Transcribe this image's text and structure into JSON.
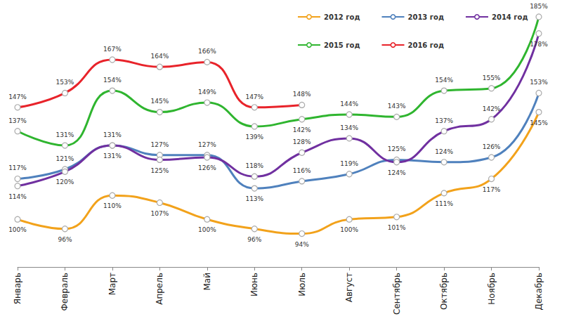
{
  "chart_data": {
    "type": "line",
    "categories": [
      "Январь",
      "Февраль",
      "Март",
      "Апрель",
      "Май",
      "Июнь",
      "Июль",
      "Август",
      "Сентябрь",
      "Октябрь",
      "Ноябрь",
      "Декабрь"
    ],
    "series": [
      {
        "name": "2012 год",
        "color": "#f2a21b",
        "values": [
          100,
          96,
          110,
          107,
          100,
          96,
          94,
          100,
          101,
          111,
          117,
          145
        ],
        "value_labels": [
          "100%",
          "96%",
          "110%",
          "107%",
          "100%",
          "96%",
          "94%",
          "100%",
          "101%",
          "111%",
          "117%",
          "145%"
        ]
      },
      {
        "name": "2013 год",
        "color": "#4f81bd",
        "values": [
          117,
          121,
          131,
          127,
          127,
          113,
          116,
          119,
          125,
          124,
          126,
          153
        ],
        "value_labels": [
          "117%",
          "121%",
          "131%",
          "127%",
          "127%",
          "113%",
          "116%",
          "119%",
          "125%",
          "124%",
          "126%",
          "153%"
        ]
      },
      {
        "name": "2014 год",
        "color": "#7030a0",
        "values": [
          114,
          120,
          131,
          125,
          126,
          118,
          128,
          134,
          124,
          137,
          142,
          178
        ],
        "value_labels": [
          "114%",
          "120%",
          "131%",
          "125%",
          "126%",
          "118%",
          "128%",
          "134%",
          "124%",
          "137%",
          "142%",
          "178%"
        ]
      },
      {
        "name": "2015 год",
        "color": "#2fb52f",
        "values": [
          137,
          131,
          154,
          145,
          149,
          139,
          142,
          144,
          143,
          154,
          155,
          185
        ],
        "value_labels": [
          "137%",
          "131%",
          "154%",
          "145%",
          "149%",
          "139%",
          "142%",
          "144%",
          "143%",
          "154%",
          "155%",
          "185%"
        ]
      },
      {
        "name": "2016 год",
        "color": "#e8232a",
        "values": [
          147,
          153,
          167,
          164,
          166,
          147,
          148,
          null,
          null,
          null,
          null,
          null
        ],
        "value_labels": [
          "147%",
          "153%",
          "167%",
          "164%",
          "166%",
          "147%",
          "148%",
          null,
          null,
          null,
          null,
          null
        ]
      }
    ],
    "ylim": [
      80,
      190
    ],
    "grid": false,
    "legend": "upper right",
    "data_labels": true,
    "tick_labels": "x",
    "marker": "circle",
    "line_style": "smooth"
  }
}
